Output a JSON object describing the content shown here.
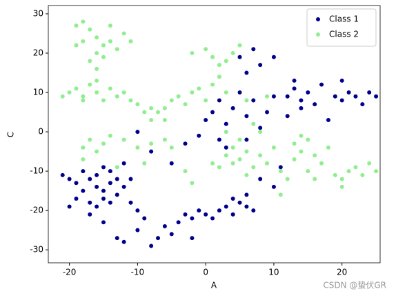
{
  "chart_data": {
    "type": "scatter",
    "xlabel": "A",
    "ylabel": "C",
    "watermark": "CSDN @蛰伏GR",
    "xlim": [
      -23.1,
      25.6
    ],
    "ylim": [
      -33.3,
      32.1
    ],
    "xticks": [
      -20,
      -10,
      0,
      10,
      20
    ],
    "yticks": [
      -30,
      -20,
      -10,
      0,
      10,
      20,
      30
    ],
    "legend": "upper right",
    "series": [
      {
        "name": "Class 1",
        "color": "#00008b",
        "x": [
          -16,
          -15,
          -14,
          -17,
          -13,
          -18,
          -15,
          -16,
          -14,
          -19,
          -12,
          -17,
          -20,
          -21,
          -19,
          -15,
          -13,
          -16,
          -18,
          -14,
          -20,
          -11,
          -12,
          -17,
          -15,
          -13,
          -12,
          -10,
          -9,
          -8,
          -7,
          -6,
          -5,
          -4,
          -3,
          -2,
          -1,
          0,
          1,
          2,
          3,
          4,
          5,
          6,
          7,
          4,
          6,
          -10,
          -11,
          -2,
          0,
          1,
          2,
          3,
          4,
          5,
          6,
          7,
          8,
          9,
          10,
          2,
          3,
          -1,
          -3,
          -5,
          -8,
          -10,
          6,
          5,
          7,
          8,
          10,
          8,
          10,
          11,
          6,
          12,
          13,
          14,
          15,
          16,
          13,
          14,
          17,
          19,
          20,
          21,
          22,
          23,
          24,
          25,
          18,
          12,
          20
        ],
        "values": [
          -14,
          -15,
          -13,
          -12,
          -16,
          -15,
          -17,
          -11,
          -10,
          -13,
          -14,
          -18,
          -12,
          -11,
          -17,
          -9,
          -12,
          -19,
          -10,
          -18,
          -19,
          -12,
          -8,
          -21,
          -23,
          -27,
          -28,
          -25,
          -22,
          -29,
          -27,
          -24,
          -26,
          -23,
          -21,
          -22,
          -20,
          -21,
          -22,
          -20,
          -19,
          -17,
          -18,
          -19,
          -20,
          -21,
          -16,
          -20,
          -18,
          -27,
          3,
          5,
          8,
          2,
          6,
          10,
          4,
          8,
          1,
          5,
          9,
          -2,
          -4,
          -1,
          -3,
          -8,
          -5,
          0,
          15,
          19,
          21,
          17,
          19,
          -12,
          -14,
          -9,
          -2,
          9,
          11,
          8,
          10,
          7,
          13,
          6,
          12,
          9,
          8,
          10,
          9,
          7,
          10,
          9,
          3,
          4,
          13
        ]
      },
      {
        "name": "Class 2",
        "color": "#90ee90",
        "x": [
          -19,
          -18,
          -17,
          -16,
          -15,
          -14,
          -16,
          -17,
          -15,
          -13,
          -12,
          -11,
          -18,
          -14,
          -16,
          -19,
          -21,
          -20,
          -19,
          -18,
          -17,
          -16,
          -15,
          -14,
          -13,
          -12,
          -18,
          -16,
          -10,
          -9,
          -8,
          -7,
          -6,
          -5,
          -4,
          -3,
          -2,
          -1,
          -6,
          -8,
          -11,
          0,
          1,
          2,
          3,
          -2,
          0,
          1,
          2,
          4,
          5,
          3,
          -18,
          -17,
          -16,
          -15,
          -14,
          -12,
          -10,
          -8,
          -6,
          -5,
          -18,
          -13,
          -9,
          3,
          4,
          5,
          6,
          7,
          8,
          9,
          10,
          2,
          4,
          6,
          5,
          8,
          7,
          9,
          11,
          12,
          11,
          -3,
          -2,
          1,
          3,
          6,
          13,
          14,
          15,
          16,
          17,
          15,
          13,
          18,
          19,
          20,
          21,
          22,
          23,
          24,
          25,
          20,
          16,
          14
        ],
        "values": [
          27,
          28,
          26,
          24,
          22,
          23,
          20,
          18,
          19,
          21,
          25,
          23,
          23,
          27,
          16,
          22,
          9,
          10,
          11,
          9,
          12,
          10,
          8,
          11,
          9,
          10,
          8,
          13,
          7,
          5,
          3,
          5,
          6,
          8,
          9,
          7,
          10,
          11,
          3,
          6,
          8,
          8,
          12,
          14,
          10,
          20,
          21,
          19,
          17,
          20,
          22,
          18,
          -4,
          -2,
          -5,
          -3,
          -1,
          -2,
          -4,
          -3,
          -2,
          -4,
          -7,
          -9,
          -8,
          -6,
          -8,
          -7,
          -5,
          -9,
          -6,
          -8,
          -4,
          -9,
          -4,
          -11,
          -2,
          0,
          2,
          9,
          -10,
          -12,
          -16,
          -10,
          -13,
          -8,
          0,
          8,
          -3,
          -5,
          -2,
          -6,
          -8,
          -10,
          -7,
          -4,
          -11,
          -12,
          -10,
          -9,
          -11,
          -8,
          -10,
          -14,
          -12,
          -1
        ]
      }
    ]
  }
}
